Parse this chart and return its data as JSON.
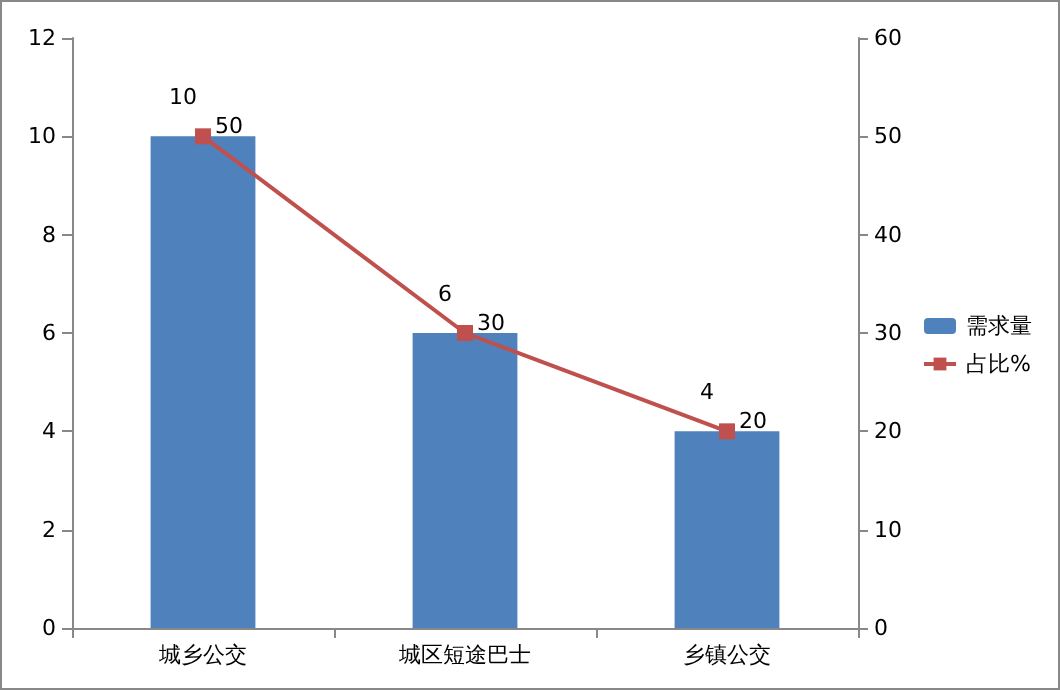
{
  "chart_data": {
    "type": "bar",
    "categories": [
      "城乡公交",
      "城区短途巴士",
      "乡镇公交"
    ],
    "series": [
      {
        "name": "需求量",
        "color": "#4f81bd",
        "values": [
          10,
          6,
          4
        ]
      },
      {
        "name": "占比%",
        "type": "line",
        "axis": "y2",
        "color": "#c0504d",
        "values": [
          50,
          30,
          20
        ]
      }
    ],
    "ylim": [
      0,
      12
    ],
    "yticks": [
      0,
      2,
      4,
      6,
      8,
      10,
      12
    ],
    "y2lim": [
      0,
      60
    ],
    "y2ticks": [
      0,
      10,
      20,
      30,
      40,
      50,
      60
    ],
    "data_labels": true,
    "legend": "right",
    "grid": false,
    "marker": "square"
  }
}
